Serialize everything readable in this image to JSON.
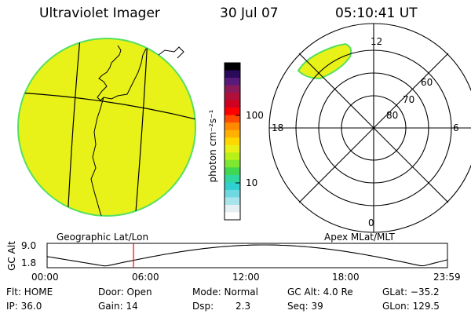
{
  "header": {
    "title": "Ultraviolet Imager",
    "date": "30 Jul 07",
    "time": "05:10:41 UT"
  },
  "colors": {
    "fill": "#e8f218",
    "edge": "#55e060",
    "line": "#000000",
    "marker": "#ff0000"
  },
  "left_panel": {
    "label": "Geographic Lat/Lon"
  },
  "colorbar": {
    "unit_label": "photon cm⁻²s⁻¹",
    "ticks": [
      "100",
      "10"
    ],
    "colors": [
      "#000000",
      "#2a0a5a",
      "#5a1a7a",
      "#8a1a5a",
      "#b0103a",
      "#d00020",
      "#ff0000",
      "#ff4a00",
      "#ff8a00",
      "#ffb000",
      "#ffd800",
      "#e8f018",
      "#b8f018",
      "#7ee830",
      "#40d850",
      "#30d8a0",
      "#30d0d0",
      "#70d8e0",
      "#a8e4ec",
      "#e4f0f4",
      "#ffffff"
    ]
  },
  "right_panel": {
    "label": "Apex MLat/MLT",
    "mlt": {
      "top": "12",
      "bottom": "0",
      "left": "18",
      "right": "6"
    },
    "mlat": [
      "60",
      "70",
      "80"
    ]
  },
  "timeline": {
    "ylabel": "GC Alt",
    "ytick_top": "9.0",
    "ytick_bottom": "1.8",
    "xticks": [
      "00:00",
      "06:00",
      "12:00",
      "18:00",
      "23:59"
    ],
    "current_hour": 5.18
  },
  "status": {
    "col1": [
      "Flt: HOME",
      "IP: 36.0"
    ],
    "col2": [
      "Door: Open",
      "Gain: 14"
    ],
    "col3a": [
      "Mode: Normal",
      "Dsp:"
    ],
    "dsp_value": "2.3",
    "col4": [
      "GC Alt: 4.0 Re",
      "Seq: 39"
    ],
    "col5": [
      "GLat: −35.2",
      "GLon: 129.5"
    ]
  }
}
